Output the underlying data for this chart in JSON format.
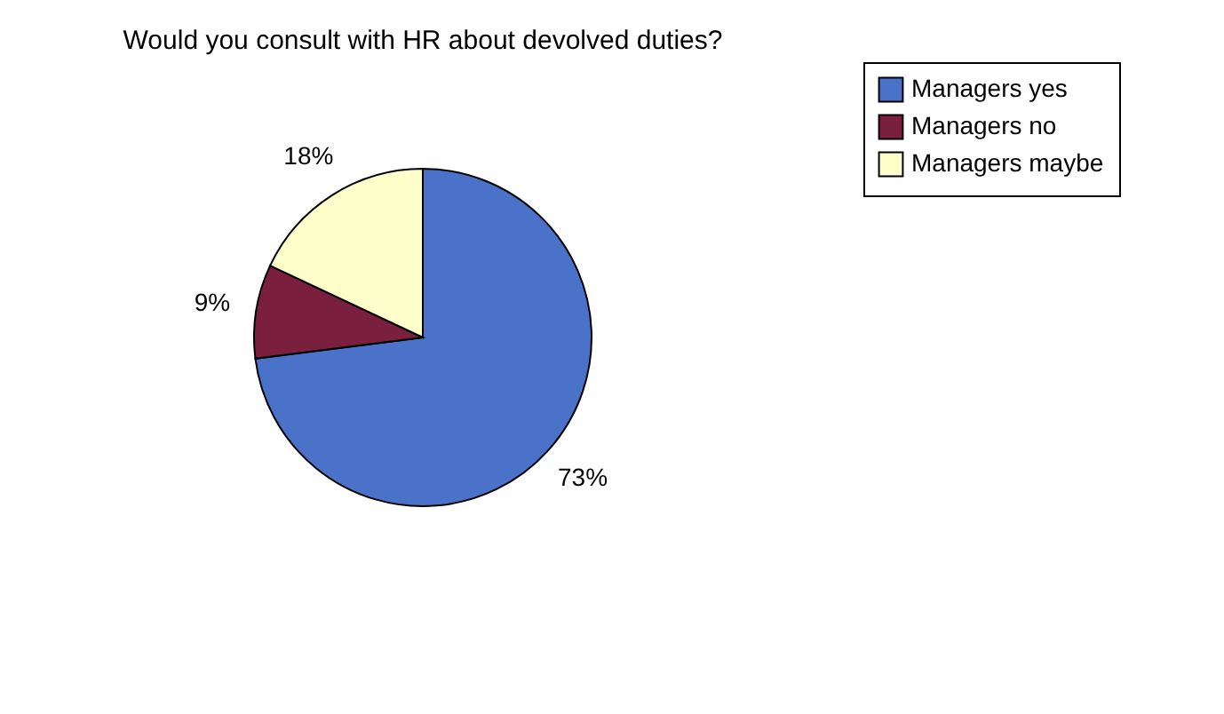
{
  "chart_data": {
    "type": "pie",
    "title": "Would you consult with HR about devolved duties?",
    "categories": [
      "Managers yes",
      "Managers no",
      "Managers maybe"
    ],
    "values": [
      73,
      9,
      18
    ],
    "colors": [
      "#4a72c8",
      "#7a1f3d",
      "#ffffcc"
    ],
    "value_labels": [
      "73%",
      "9%",
      "18%"
    ],
    "legend": "right"
  }
}
